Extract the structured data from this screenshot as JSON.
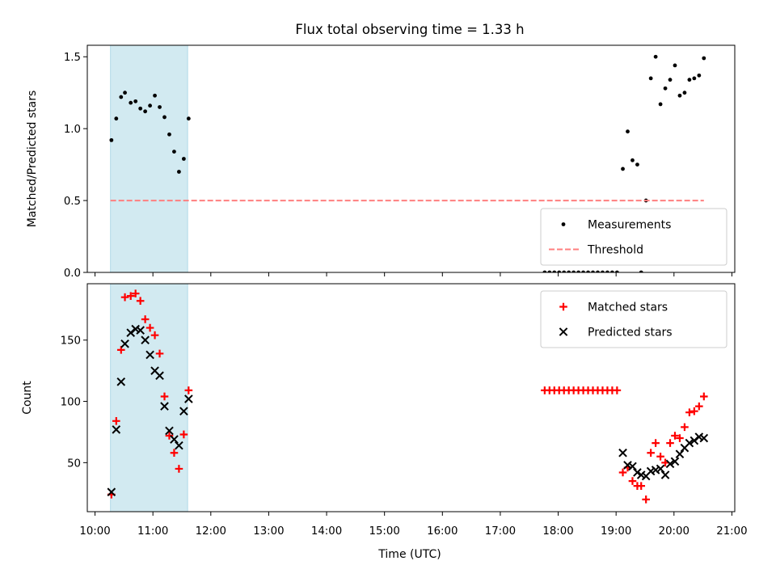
{
  "chart_data": {
    "title": "Flux total observing time = 1.33 h",
    "xlabel": "Time (UTC)",
    "x_ticks": [
      "10:00",
      "11:00",
      "12:00",
      "13:00",
      "14:00",
      "15:00",
      "16:00",
      "17:00",
      "18:00",
      "19:00",
      "20:00",
      "21:00"
    ],
    "x_tick_hours": [
      10,
      11,
      12,
      13,
      14,
      15,
      16,
      17,
      18,
      19,
      20,
      21
    ],
    "xlim": [
      "09:52",
      "21:03"
    ],
    "shaded_span": [
      "10:16",
      "11:36"
    ],
    "panels": [
      {
        "type": "scatter",
        "ylabel": "Matched/Predicted stars",
        "ylim": [
          0,
          1.58
        ],
        "y_ticks": [
          "0.0",
          "0.5",
          "1.0",
          "1.5"
        ],
        "y_tick_values": [
          0,
          0.5,
          1.0,
          1.5
        ],
        "legend_position": "lower-right",
        "series": [
          {
            "name": "Measurements",
            "marker": "dot",
            "color": "#000000",
            "points": [
              [
                "10:17",
                0.92
              ],
              [
                "10:22",
                1.07
              ],
              [
                "10:27",
                1.22
              ],
              [
                "10:31",
                1.25
              ],
              [
                "10:37",
                1.18
              ],
              [
                "10:42",
                1.19
              ],
              [
                "10:47",
                1.14
              ],
              [
                "10:52",
                1.12
              ],
              [
                "10:57",
                1.16
              ],
              [
                "11:02",
                1.23
              ],
              [
                "11:07",
                1.15
              ],
              [
                "11:12",
                1.08
              ],
              [
                "11:17",
                0.96
              ],
              [
                "11:22",
                0.84
              ],
              [
                "11:27",
                0.7
              ],
              [
                "11:32",
                0.79
              ],
              [
                "11:37",
                1.07
              ],
              [
                "17:46",
                0
              ],
              [
                "17:51",
                0
              ],
              [
                "17:56",
                0
              ],
              [
                "18:01",
                0
              ],
              [
                "18:06",
                0
              ],
              [
                "18:11",
                0
              ],
              [
                "18:16",
                0
              ],
              [
                "18:21",
                0
              ],
              [
                "18:26",
                0
              ],
              [
                "18:31",
                0
              ],
              [
                "18:36",
                0
              ],
              [
                "18:41",
                0
              ],
              [
                "18:46",
                0
              ],
              [
                "18:51",
                0
              ],
              [
                "18:56",
                0
              ],
              [
                "19:01",
                0
              ],
              [
                "19:07",
                0.72
              ],
              [
                "19:12",
                0.98
              ],
              [
                "19:17",
                0.78
              ],
              [
                "19:22",
                0.75
              ],
              [
                "19:26",
                0
              ],
              [
                "19:31",
                0.5
              ],
              [
                "19:36",
                1.35
              ],
              [
                "19:41",
                1.5
              ],
              [
                "19:46",
                1.17
              ],
              [
                "19:51",
                1.28
              ],
              [
                "19:56",
                1.34
              ],
              [
                "20:01",
                1.44
              ],
              [
                "20:06",
                1.23
              ],
              [
                "20:11",
                1.25
              ],
              [
                "20:16",
                1.34
              ],
              [
                "20:21",
                1.35
              ],
              [
                "20:26",
                1.37
              ],
              [
                "20:31",
                1.49
              ]
            ]
          },
          {
            "name": "Threshold",
            "marker": "dashed-line",
            "color": "#ff7f7f",
            "points": [
              [
                "10:16",
                0.5
              ],
              [
                "20:31",
                0.5
              ]
            ]
          }
        ]
      },
      {
        "type": "scatter",
        "ylabel": "Count",
        "ylim": [
          10,
          196
        ],
        "y_ticks": [
          "50",
          "100",
          "150"
        ],
        "y_tick_values": [
          50,
          100,
          150
        ],
        "legend_position": "upper-right",
        "series": [
          {
            "name": "Matched stars",
            "marker": "plus",
            "color": "#ff0000",
            "points": [
              [
                "10:17",
                24
              ],
              [
                "10:22",
                84
              ],
              [
                "10:27",
                142
              ],
              [
                "10:31",
                185
              ],
              [
                "10:37",
                186
              ],
              [
                "10:42",
                188
              ],
              [
                "10:47",
                182
              ],
              [
                "10:52",
                167
              ],
              [
                "10:57",
                160
              ],
              [
                "11:02",
                154
              ],
              [
                "11:07",
                139
              ],
              [
                "11:12",
                104
              ],
              [
                "11:17",
                72
              ],
              [
                "11:22",
                58
              ],
              [
                "11:27",
                45
              ],
              [
                "11:32",
                73
              ],
              [
                "11:37",
                109
              ],
              [
                "17:46",
                109
              ],
              [
                "17:51",
                109
              ],
              [
                "17:56",
                109
              ],
              [
                "18:01",
                109
              ],
              [
                "18:06",
                109
              ],
              [
                "18:11",
                109
              ],
              [
                "18:16",
                109
              ],
              [
                "18:21",
                109
              ],
              [
                "18:26",
                109
              ],
              [
                "18:31",
                109
              ],
              [
                "18:36",
                109
              ],
              [
                "18:41",
                109
              ],
              [
                "18:46",
                109
              ],
              [
                "18:51",
                109
              ],
              [
                "18:56",
                109
              ],
              [
                "19:01",
                109
              ],
              [
                "19:07",
                42
              ],
              [
                "19:12",
                46
              ],
              [
                "19:17",
                35
              ],
              [
                "19:22",
                31
              ],
              [
                "19:26",
                31
              ],
              [
                "19:31",
                20
              ],
              [
                "19:36",
                58
              ],
              [
                "19:41",
                66
              ],
              [
                "19:46",
                55
              ],
              [
                "19:51",
                50
              ],
              [
                "19:56",
                66
              ],
              [
                "20:01",
                72
              ],
              [
                "20:06",
                70
              ],
              [
                "20:11",
                79
              ],
              [
                "20:16",
                91
              ],
              [
                "20:21",
                92
              ],
              [
                "20:26",
                96
              ],
              [
                "20:31",
                104
              ]
            ]
          },
          {
            "name": "Predicted stars",
            "marker": "cross",
            "color": "#000000",
            "points": [
              [
                "10:17",
                26
              ],
              [
                "10:22",
                77
              ],
              [
                "10:27",
                116
              ],
              [
                "10:31",
                147
              ],
              [
                "10:37",
                156
              ],
              [
                "10:42",
                159
              ],
              [
                "10:47",
                158
              ],
              [
                "10:52",
                150
              ],
              [
                "10:57",
                138
              ],
              [
                "11:02",
                125
              ],
              [
                "11:07",
                121
              ],
              [
                "11:12",
                96
              ],
              [
                "11:17",
                76
              ],
              [
                "11:22",
                69
              ],
              [
                "11:27",
                64
              ],
              [
                "11:32",
                92
              ],
              [
                "11:37",
                102
              ],
              [
                "19:07",
                58
              ],
              [
                "19:12",
                48
              ],
              [
                "19:17",
                47
              ],
              [
                "19:22",
                42
              ],
              [
                "19:26",
                40
              ],
              [
                "19:31",
                39
              ],
              [
                "19:36",
                43
              ],
              [
                "19:41",
                44
              ],
              [
                "19:46",
                45
              ],
              [
                "19:51",
                40
              ],
              [
                "19:56",
                49
              ],
              [
                "20:01",
                51
              ],
              [
                "20:06",
                57
              ],
              [
                "20:11",
                62
              ],
              [
                "20:16",
                66
              ],
              [
                "20:21",
                68
              ],
              [
                "20:26",
                71
              ],
              [
                "20:31",
                70
              ]
            ]
          }
        ]
      }
    ]
  }
}
